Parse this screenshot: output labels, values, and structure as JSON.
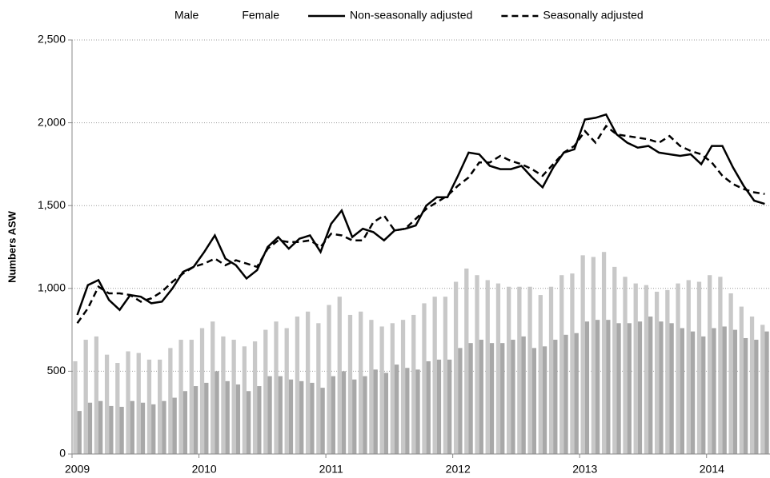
{
  "chart_data": {
    "type": "bar-line",
    "ylabel": "Numbers ASW",
    "categories": [
      "2009",
      null,
      null,
      null,
      null,
      null,
      null,
      null,
      null,
      null,
      null,
      null,
      "2010",
      null,
      null,
      null,
      null,
      null,
      null,
      null,
      null,
      null,
      null,
      null,
      "2011",
      null,
      null,
      null,
      null,
      null,
      null,
      null,
      null,
      null,
      null,
      null,
      "2012",
      null,
      null,
      null,
      null,
      null,
      null,
      null,
      null,
      null,
      null,
      null,
      "2013",
      null,
      null,
      null,
      null,
      null,
      null,
      null,
      null,
      null,
      null,
      null,
      "2014",
      null,
      null,
      null,
      null,
      null
    ],
    "series": [
      {
        "name": "Male",
        "type": "bar",
        "color": "#c8c8c8",
        "values": [
          560,
          690,
          710,
          600,
          550,
          620,
          610,
          570,
          570,
          640,
          690,
          690,
          760,
          800,
          710,
          690,
          650,
          680,
          750,
          800,
          760,
          830,
          860,
          790,
          900,
          950,
          840,
          860,
          810,
          770,
          790,
          810,
          840,
          910,
          950,
          950,
          1040,
          1120,
          1080,
          1050,
          1030,
          1010,
          1010,
          1010,
          960,
          1010,
          1080,
          1090,
          1200,
          1190,
          1220,
          1130,
          1070,
          1030,
          1020,
          980,
          990,
          1030,
          1050,
          1040,
          1080,
          1070,
          970,
          890,
          830,
          780
        ]
      },
      {
        "name": "Female",
        "type": "bar",
        "color": "#a8a8a8",
        "values": [
          260,
          310,
          320,
          290,
          285,
          320,
          310,
          300,
          320,
          340,
          380,
          410,
          430,
          500,
          440,
          420,
          380,
          410,
          470,
          470,
          450,
          440,
          430,
          400,
          470,
          500,
          450,
          470,
          510,
          490,
          540,
          520,
          510,
          560,
          570,
          570,
          640,
          670,
          690,
          670,
          670,
          690,
          710,
          640,
          650,
          690,
          720,
          730,
          800,
          810,
          810,
          790,
          790,
          800,
          830,
          800,
          790,
          760,
          740,
          710,
          760,
          770,
          750,
          700,
          690,
          740
        ]
      },
      {
        "name": "Non-seasonally adjusted",
        "type": "line",
        "line_style": "solid",
        "color": "#000000",
        "values": [
          840,
          1020,
          1050,
          930,
          870,
          960,
          950,
          910,
          920,
          1000,
          1100,
          1130,
          1220,
          1320,
          1180,
          1140,
          1060,
          1110,
          1250,
          1310,
          1240,
          1300,
          1320,
          1220,
          1390,
          1470,
          1310,
          1360,
          1340,
          1290,
          1350,
          1360,
          1380,
          1500,
          1550,
          1550,
          1680,
          1820,
          1810,
          1740,
          1720,
          1720,
          1740,
          1670,
          1610,
          1730,
          1820,
          1840,
          2020,
          2030,
          2050,
          1930,
          1880,
          1850,
          1860,
          1820,
          1810,
          1800,
          1810,
          1750,
          1860,
          1860,
          1730,
          1620,
          1530,
          1510
        ]
      },
      {
        "name": "Seasonally adjusted",
        "type": "line",
        "line_style": "dashed",
        "color": "#000000",
        "values": [
          790,
          880,
          1010,
          970,
          970,
          960,
          920,
          940,
          980,
          1040,
          1090,
          1130,
          1150,
          1180,
          1140,
          1170,
          1150,
          1130,
          1240,
          1290,
          1280,
          1280,
          1290,
          1250,
          1330,
          1320,
          1290,
          1290,
          1400,
          1440,
          1350,
          1360,
          1420,
          1480,
          1520,
          1560,
          1620,
          1670,
          1760,
          1760,
          1800,
          1770,
          1750,
          1720,
          1680,
          1750,
          1820,
          1860,
          1950,
          1880,
          1980,
          1930,
          1920,
          1910,
          1900,
          1880,
          1920,
          1860,
          1830,
          1810,
          1760,
          1680,
          1630,
          1600,
          1580,
          1570
        ]
      }
    ],
    "ylim": [
      0,
      2500
    ],
    "yticks": [
      0,
      500,
      {
        "value": 1000,
        "label": "1,000"
      },
      {
        "value": 1500,
        "label": "1,500"
      },
      {
        "value": 2000,
        "label": "2,000"
      },
      {
        "value": 2500,
        "label": "2,500"
      }
    ],
    "grid": true,
    "legend": "top"
  }
}
